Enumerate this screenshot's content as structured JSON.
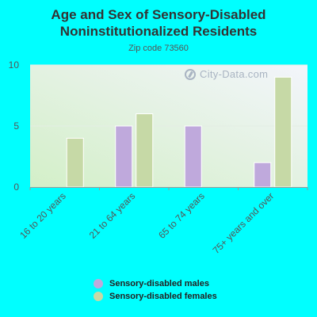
{
  "title_line1": "Age and Sex of Sensory-Disabled",
  "title_line2": "Noninstitutionalized Residents",
  "subtitle": "Zip code 73560",
  "watermark": "City-Data.com",
  "colors": {
    "background": "#00ffff",
    "males": "#bfa9dc",
    "females": "#c6d9a6"
  },
  "chart_data": {
    "type": "bar",
    "categories": [
      "16 to 20 years",
      "21 to 64 years",
      "65 to 74 years",
      "75+ years and over"
    ],
    "series": [
      {
        "name": "Sensory-disabled males",
        "values": [
          0,
          5,
          5,
          2
        ]
      },
      {
        "name": "Sensory-disabled females",
        "values": [
          4,
          6,
          0,
          9
        ]
      }
    ],
    "yticks": [
      0,
      5,
      10
    ],
    "ylim": [
      0,
      10
    ],
    "grid": true,
    "legend_position": "bottom"
  }
}
